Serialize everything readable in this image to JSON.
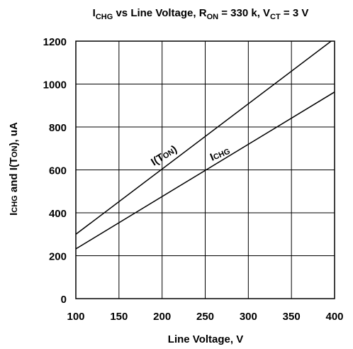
{
  "chart_data": {
    "type": "line",
    "title": {
      "a": "I",
      "a_sub": "CHG",
      "b": " vs Line Voltage, R",
      "b_sub": "ON",
      "c": " = 330 k, V",
      "c_sub": "CT",
      "d": " = 3 V"
    },
    "xlabel": "Line  Voltage,  V",
    "ylabel": {
      "a": "I",
      "a_sc": "CHG",
      "b": "  and  I(T",
      "b_sc": "ON",
      "c": "),  uA"
    },
    "xlim": [
      100,
      400
    ],
    "ylim": [
      0,
      1200
    ],
    "xticks": [
      100,
      150,
      200,
      250,
      300,
      350,
      400
    ],
    "yticks": [
      0,
      200,
      400,
      600,
      800,
      1000,
      1200
    ],
    "grid": true,
    "series": [
      {
        "name": "I(TON)",
        "label": {
          "a": "I(T",
          "sc": "ON",
          "b": ")"
        },
        "x": [
          100,
          400
        ],
        "y": [
          300,
          1212
        ]
      },
      {
        "name": "ICHG",
        "label": {
          "a": "I",
          "sc": "CHG"
        },
        "x": [
          100,
          400
        ],
        "y": [
          232,
          963
        ]
      }
    ]
  }
}
